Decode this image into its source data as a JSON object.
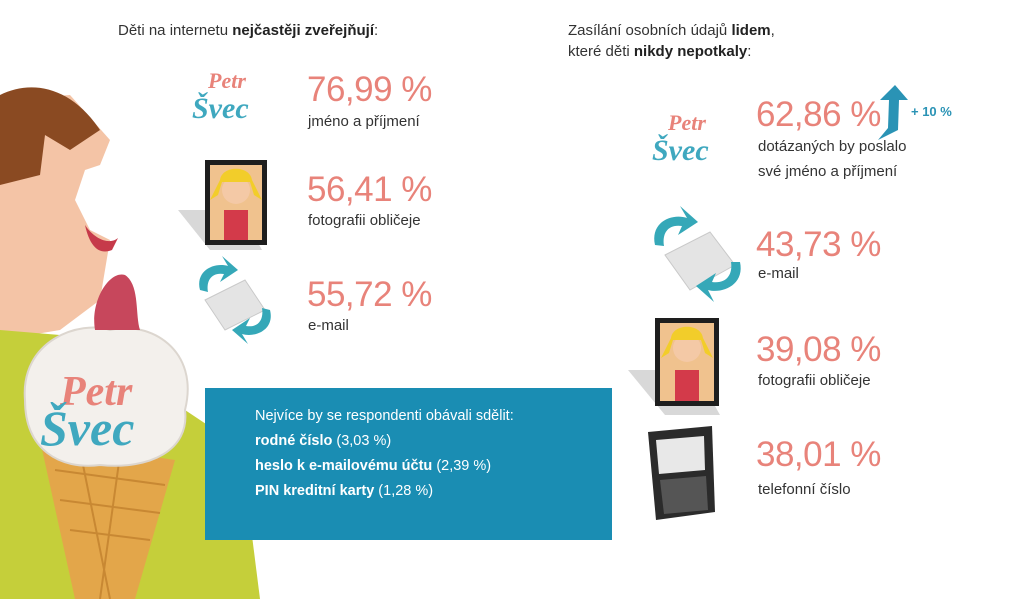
{
  "left": {
    "heading": [
      "Děti na internetu",
      "nejčastěji zveřejňují",
      ":"
    ],
    "items": [
      {
        "value": "76,99 %",
        "label": "jméno a příjmení"
      },
      {
        "value": "56,41 %",
        "label": "fotografii obličeje"
      },
      {
        "value": "55,72 %",
        "label": "e-mail"
      }
    ]
  },
  "right": {
    "heading": [
      [
        "Zasílání osobních údajů",
        "lidem",
        ","
      ],
      [
        "které děti",
        "nikdy nepotkaly",
        ":"
      ]
    ],
    "items": [
      {
        "value": "62,86 %",
        "label": [
          "dotázaných by poslalo",
          "své jméno a příjmení"
        ],
        "change": "+ 10 %"
      },
      {
        "value": "43,73 %",
        "label": [
          "e-mail"
        ]
      },
      {
        "value": "39,08 %",
        "label": [
          "fotografii obličeje"
        ]
      },
      {
        "value": "38,01 %",
        "label": [
          "telefonní číslo"
        ]
      }
    ]
  },
  "logo": [
    "Petr",
    "Švec"
  ],
  "box": {
    "intro": "Nejvíce by se respondenti obávali sdělit:",
    "lines": [
      [
        "rodné číslo",
        "(3,03 %)"
      ],
      [
        "heslo k e-mailovému účtu",
        "(2,39 %)"
      ],
      [
        "PIN kreditní karty",
        "(1,28 %)"
      ]
    ]
  }
}
